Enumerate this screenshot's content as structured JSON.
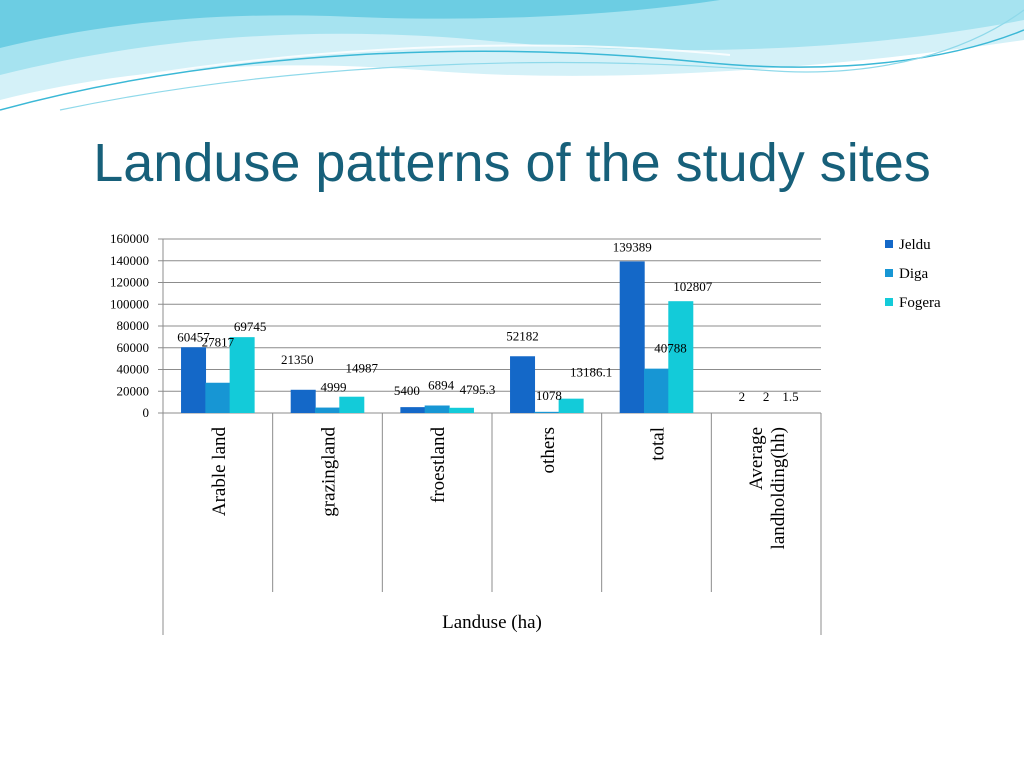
{
  "slide": {
    "title": "Landuse patterns of the study sites"
  },
  "colors": {
    "title": "#17607a",
    "header_wave_light": "#d4f1f8",
    "header_wave_mid": "#8fd9ea",
    "header_wave_dark": "#3bb8d6"
  },
  "chart_data": {
    "type": "bar",
    "categories": [
      "Arable land",
      "grazingland",
      "froestland",
      "others",
      "total",
      "Average landholding(hh)"
    ],
    "category_lines": [
      [
        "Arable land"
      ],
      [
        "grazingland"
      ],
      [
        "froestland"
      ],
      [
        "others"
      ],
      [
        "total"
      ],
      [
        "Average",
        "landholding(hh)"
      ]
    ],
    "series": [
      {
        "name": "Jeldu",
        "color": "#1468c8",
        "values": [
          60457,
          21350,
          5400,
          52182,
          139389,
          2
        ],
        "labels": [
          "60457",
          "21350",
          "5400",
          "52182",
          "139389",
          "2"
        ]
      },
      {
        "name": "Diga",
        "color": "#1796d4",
        "values": [
          27817,
          4999,
          6894,
          1078,
          40788,
          2
        ],
        "labels": [
          "27817",
          "4999",
          "6894",
          "1078",
          "40788",
          "2"
        ]
      },
      {
        "name": "Fogera",
        "color": "#13cbd9",
        "values": [
          69745,
          14987,
          4795.3,
          13186.1,
          102807,
          1.5
        ],
        "labels": [
          "69745",
          "14987",
          "4795.3",
          "13186.1",
          "102807",
          "1.5"
        ]
      }
    ],
    "xlabel": "Landuse (ha)",
    "ylabel": "",
    "ylim": [
      0,
      160000
    ],
    "yticks": [
      0,
      20000,
      40000,
      60000,
      80000,
      100000,
      120000,
      140000,
      160000
    ],
    "grid": true,
    "legend": "right"
  }
}
